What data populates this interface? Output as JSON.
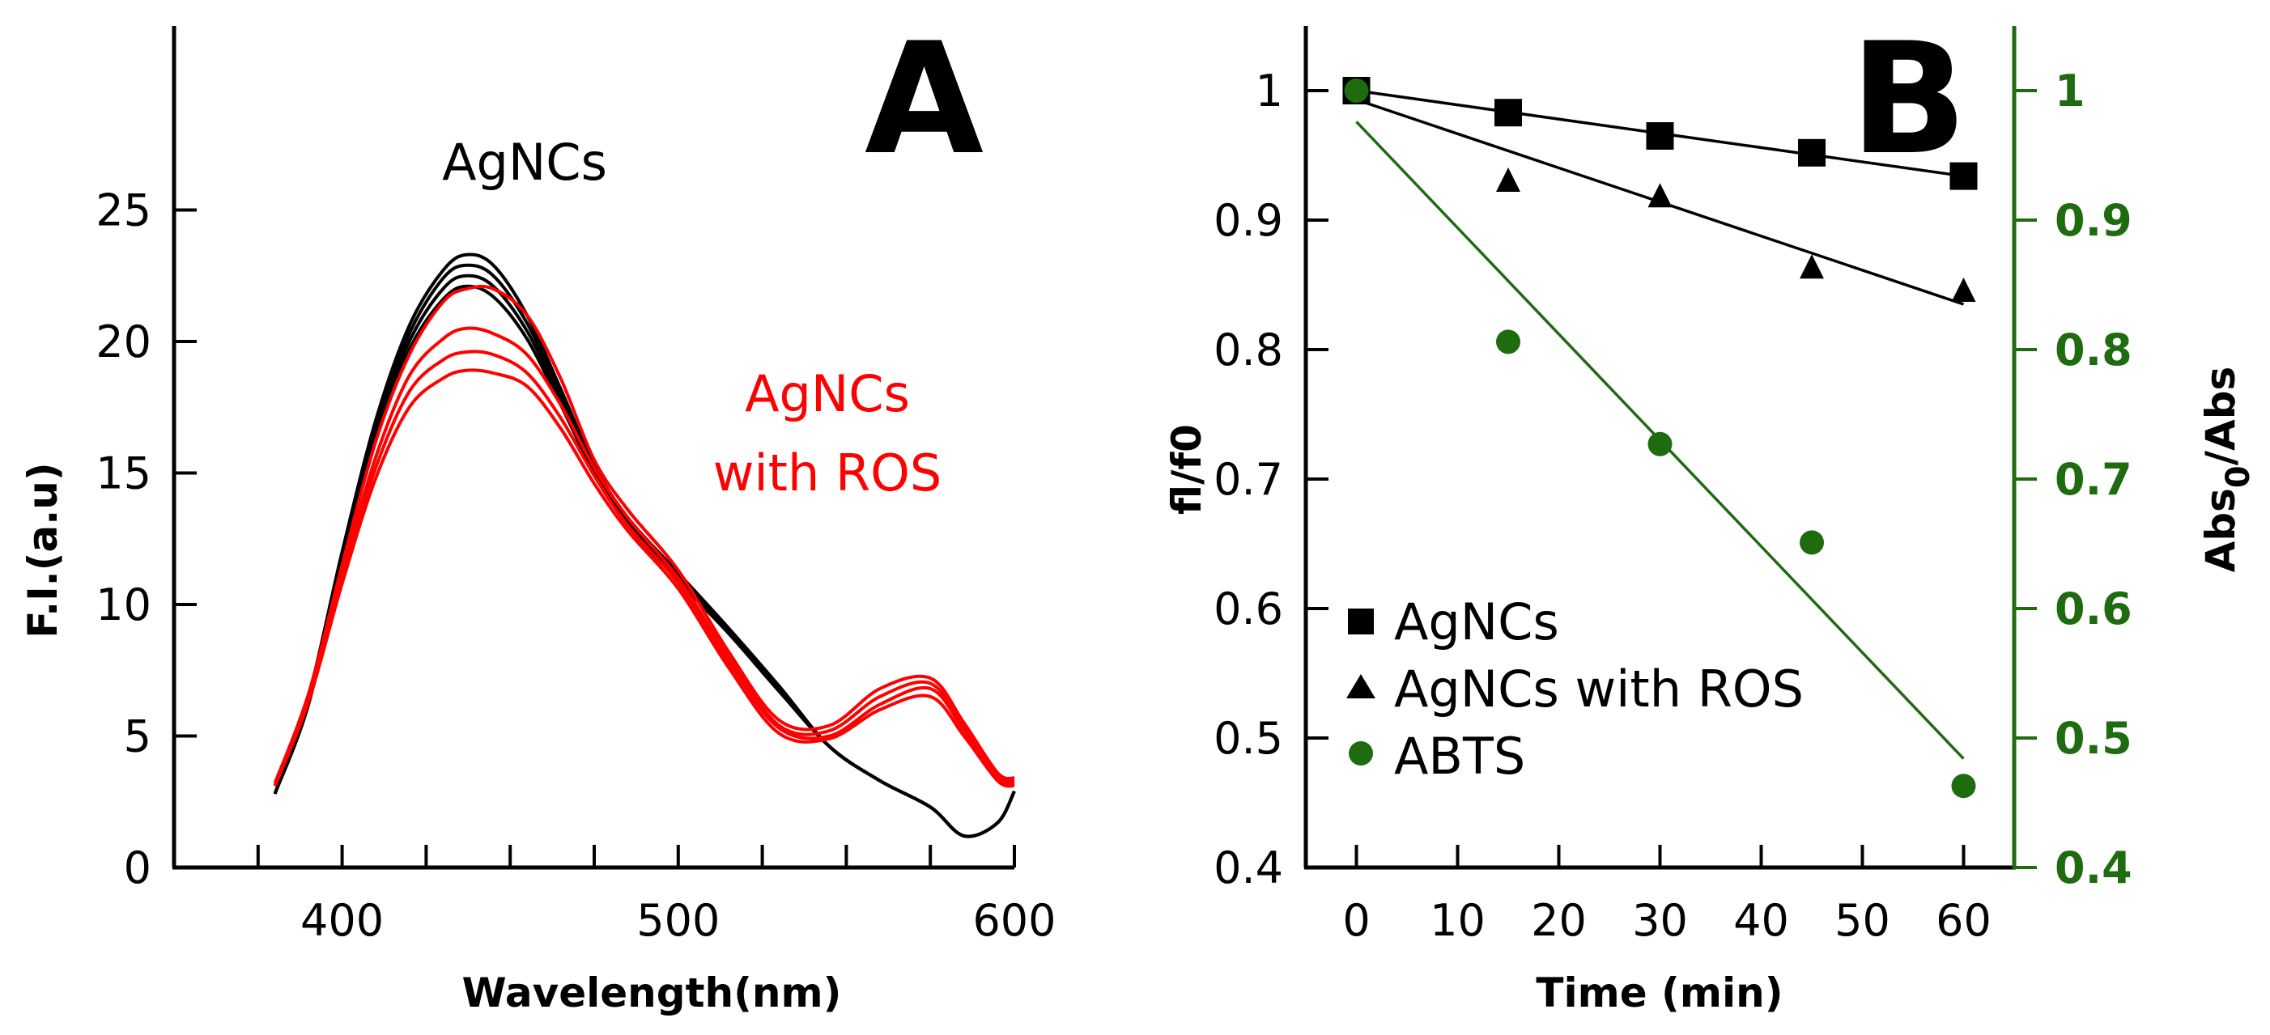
{
  "chart_data": [
    {
      "panel": "A",
      "type": "line",
      "xlabel": "Wavelength(nm)",
      "ylabel": "F.I.(a.u)",
      "xlim": [
        350,
        600
      ],
      "ylim": [
        0,
        32
      ],
      "xticks": [
        400,
        500,
        600
      ],
      "xticks_minor": [
        350,
        375,
        400,
        425,
        450,
        475,
        500,
        525,
        550,
        575,
        600
      ],
      "yticks": [
        0,
        5,
        10,
        15,
        20,
        25
      ],
      "annotations": [
        "AgNCs",
        "AgNCs",
        "with ROS"
      ],
      "colors": {
        "agncs": "#000000",
        "ros": "#ff0000"
      },
      "x": [
        380,
        390,
        400,
        410,
        420,
        430,
        437,
        445,
        455,
        465,
        475,
        485,
        500,
        515,
        530,
        545,
        560,
        575,
        585,
        595,
        600
      ],
      "series": [
        {
          "name": "AgNCs 1",
          "color": "#000000",
          "values": [
            2.8,
            6.5,
            12.0,
            17.0,
            20.6,
            22.7,
            23.3,
            22.9,
            21.0,
            18.2,
            15.3,
            13.3,
            11.2,
            9.1,
            6.9,
            4.6,
            3.3,
            2.3,
            1.2,
            1.7,
            2.9
          ]
        },
        {
          "name": "AgNCs 2",
          "color": "#000000",
          "values": [
            2.8,
            6.4,
            11.9,
            16.8,
            20.3,
            22.4,
            22.9,
            22.5,
            20.7,
            18.0,
            15.2,
            13.2,
            11.1,
            9.0,
            6.8,
            4.6,
            3.3,
            2.3,
            1.2,
            1.7,
            2.9
          ]
        },
        {
          "name": "AgNCs 3",
          "color": "#000000",
          "values": [
            2.8,
            6.3,
            11.8,
            16.6,
            20.0,
            22.0,
            22.5,
            22.1,
            20.4,
            17.8,
            15.1,
            13.1,
            11.0,
            8.9,
            6.8,
            4.6,
            3.3,
            2.3,
            1.2,
            1.7,
            2.9
          ]
        },
        {
          "name": "AgNCs 4",
          "color": "#000000",
          "values": [
            2.8,
            6.2,
            11.7,
            16.4,
            19.7,
            21.6,
            22.1,
            21.7,
            20.1,
            17.6,
            15.0,
            13.0,
            10.9,
            8.9,
            6.7,
            4.6,
            3.3,
            2.3,
            1.2,
            1.7,
            2.9
          ]
        },
        {
          "name": "AgNCs with ROS 1",
          "color": "#ff0000",
          "values": [
            3.2,
            6.6,
            11.5,
            16.2,
            19.5,
            21.5,
            22.0,
            22.0,
            21.0,
            18.6,
            15.5,
            13.6,
            11.3,
            8.2,
            5.6,
            5.4,
            6.8,
            7.2,
            5.5,
            3.6,
            3.4
          ]
        },
        {
          "name": "AgNCs with ROS 2",
          "color": "#ff0000",
          "values": [
            3.2,
            6.5,
            11.2,
            15.6,
            18.7,
            20.1,
            20.5,
            20.3,
            19.5,
            17.6,
            15.2,
            13.3,
            11.0,
            8.0,
            5.4,
            5.2,
            6.5,
            7.0,
            5.3,
            3.5,
            3.3
          ]
        },
        {
          "name": "AgNCs with ROS 3",
          "color": "#ff0000",
          "values": [
            3.1,
            6.4,
            11.0,
            15.2,
            18.1,
            19.3,
            19.6,
            19.5,
            18.8,
            17.1,
            14.9,
            13.0,
            10.8,
            7.8,
            5.3,
            5.0,
            6.2,
            6.8,
            5.2,
            3.4,
            3.2
          ]
        },
        {
          "name": "AgNCs with ROS 4",
          "color": "#ff0000",
          "values": [
            3.1,
            6.3,
            10.8,
            14.8,
            17.5,
            18.6,
            18.9,
            18.8,
            18.3,
            16.7,
            14.6,
            12.8,
            10.6,
            7.6,
            5.1,
            4.9,
            6.0,
            6.5,
            5.0,
            3.3,
            3.1
          ]
        }
      ]
    },
    {
      "panel": "B",
      "type": "scatter",
      "xlabel": "Time (min)",
      "ylabel": "fl/f0",
      "y2label_main": "Abs",
      "y2label_sub": "0",
      "y2label_tail": "/Abs",
      "xlim": [
        -5,
        65
      ],
      "ylim": [
        0.4,
        1.05
      ],
      "y2lim": [
        0.4,
        1.05
      ],
      "xticks": [
        0,
        10,
        20,
        30,
        40,
        50,
        60
      ],
      "yticks": [
        0.4,
        0.5,
        0.6,
        0.7,
        0.8,
        0.9,
        1
      ],
      "yticklabels": [
        "0.4",
        "0.5",
        "0.6",
        "0.7",
        "0.8",
        "0.9",
        "1"
      ],
      "y2ticks": [
        0.4,
        0.5,
        0.6,
        0.7,
        0.8,
        0.9,
        1
      ],
      "y2ticklabels": [
        "0.4",
        "0.5",
        "0.6",
        "0.7",
        "0.8",
        "0.9",
        "1"
      ],
      "colors": {
        "agncs": "#000000",
        "ros": "#000000",
        "abts": "#1e6b10"
      },
      "series": [
        {
          "name": "AgNCs",
          "marker": "square",
          "color": "#000000",
          "x": [
            0,
            15,
            30,
            45,
            60
          ],
          "values": [
            1.0,
            0.983,
            0.965,
            0.952,
            0.934
          ],
          "fit": [
            1.0,
            0.934
          ]
        },
        {
          "name": "AgNCs with ROS",
          "marker": "triangle",
          "color": "#000000",
          "x": [
            0,
            15,
            30,
            45,
            60
          ],
          "values": [
            1.0,
            0.93,
            0.918,
            0.863,
            0.845
          ],
          "fit": [
            0.993,
            0.835
          ]
        },
        {
          "name": "ABTS",
          "marker": "circle",
          "color": "#1e6b10",
          "axis": "right",
          "x": [
            0,
            15,
            30,
            45,
            60
          ],
          "values": [
            1.0,
            0.806,
            0.727,
            0.651,
            0.463
          ],
          "fit": [
            0.976,
            0.484
          ]
        }
      ]
    }
  ]
}
